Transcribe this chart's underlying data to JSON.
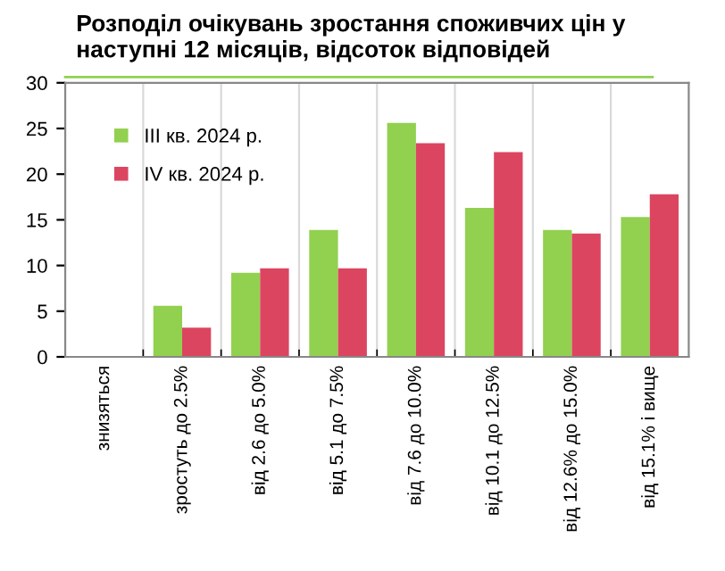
{
  "chart_data": {
    "type": "bar",
    "title": "Розподіл очікувань зростання споживчих цін у\nнаступні 12 місяців, відсоток відповідей",
    "categories": [
      "знизяться",
      "зростуть до 2.5%",
      "від 2.6 до 5.0%",
      "від 5.1 до 7.5%",
      "від 7.6 до 10.0%",
      "від 10.1 до 12.5%",
      "від 12.6% до 15.0%",
      "від 15.1% і вище"
    ],
    "series": [
      {
        "name": "III кв. 2024 р.",
        "color": "#92d050",
        "values": [
          0,
          5.6,
          9.2,
          13.9,
          25.6,
          16.3,
          13.9,
          15.3
        ]
      },
      {
        "name": "IV кв. 2024 р.",
        "color": "#dc4560",
        "values": [
          0,
          3.2,
          9.7,
          9.7,
          23.4,
          22.4,
          13.5,
          17.8
        ]
      }
    ],
    "ylim": [
      0,
      30
    ],
    "yticks": [
      0,
      5,
      10,
      15,
      20,
      25,
      30
    ],
    "grid": "x",
    "legend": "top left"
  }
}
